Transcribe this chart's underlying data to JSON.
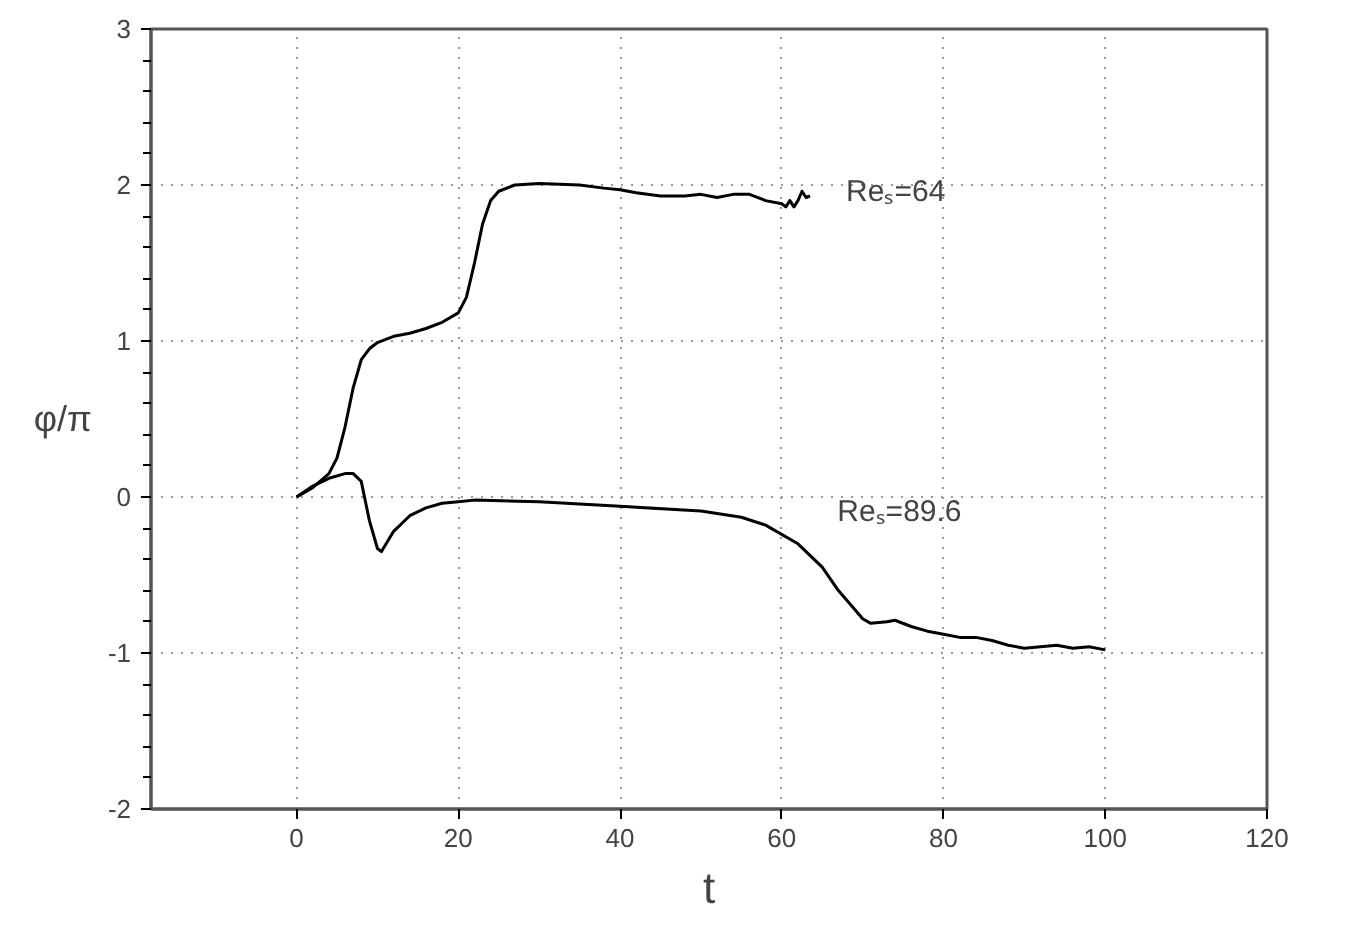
{
  "chart_data": {
    "type": "line",
    "xlabel": "t",
    "ylabel": "φ/π",
    "xlim": [
      -18,
      120
    ],
    "xticks": [
      0,
      20,
      40,
      60,
      80,
      100,
      120
    ],
    "ylim": [
      -2,
      3
    ],
    "yticks": [
      -2,
      -1,
      0,
      1,
      2,
      3
    ],
    "grid": true,
    "line_style": "solid",
    "marker": "none",
    "series": [
      {
        "name": "Reₛ=64",
        "color": "#000000",
        "x": [
          0,
          2,
          4,
          5,
          6,
          7,
          8,
          9,
          10,
          12,
          14,
          16,
          18,
          20,
          21,
          22,
          23,
          24,
          25,
          27,
          30,
          35,
          38,
          40,
          42,
          45,
          48,
          50,
          52,
          54,
          56,
          58,
          60,
          60.5,
          61,
          61.5,
          62,
          62.5,
          63,
          63.5
        ],
        "values": [
          0,
          0.06,
          0.15,
          0.25,
          0.45,
          0.7,
          0.88,
          0.95,
          0.99,
          1.03,
          1.05,
          1.08,
          1.12,
          1.18,
          1.28,
          1.5,
          1.75,
          1.9,
          1.96,
          2.0,
          2.01,
          2.0,
          1.98,
          1.97,
          1.95,
          1.93,
          1.93,
          1.94,
          1.92,
          1.94,
          1.94,
          1.9,
          1.88,
          1.86,
          1.9,
          1.86,
          1.9,
          1.96,
          1.92,
          1.93
        ]
      },
      {
        "name": "Reₛ=89.6",
        "color": "#000000",
        "x": [
          0,
          2,
          4,
          6,
          7,
          8,
          9,
          10,
          10.5,
          12,
          14,
          16,
          18,
          20,
          22,
          30,
          40,
          50,
          55,
          58,
          62,
          65,
          67,
          69,
          70,
          71,
          73,
          74,
          76,
          78,
          80,
          82,
          84,
          86,
          88,
          90,
          92,
          94,
          96,
          98,
          100
        ],
        "values": [
          0,
          0.07,
          0.12,
          0.15,
          0.15,
          0.1,
          -0.15,
          -0.33,
          -0.35,
          -0.22,
          -0.12,
          -0.07,
          -0.04,
          -0.03,
          -0.02,
          -0.03,
          -0.06,
          -0.09,
          -0.13,
          -0.18,
          -0.3,
          -0.45,
          -0.6,
          -0.72,
          -0.78,
          -0.81,
          -0.8,
          -0.79,
          -0.83,
          -0.86,
          -0.88,
          -0.9,
          -0.9,
          -0.92,
          -0.95,
          -0.97,
          -0.96,
          -0.95,
          -0.97,
          -0.96,
          -0.98
        ]
      }
    ]
  }
}
